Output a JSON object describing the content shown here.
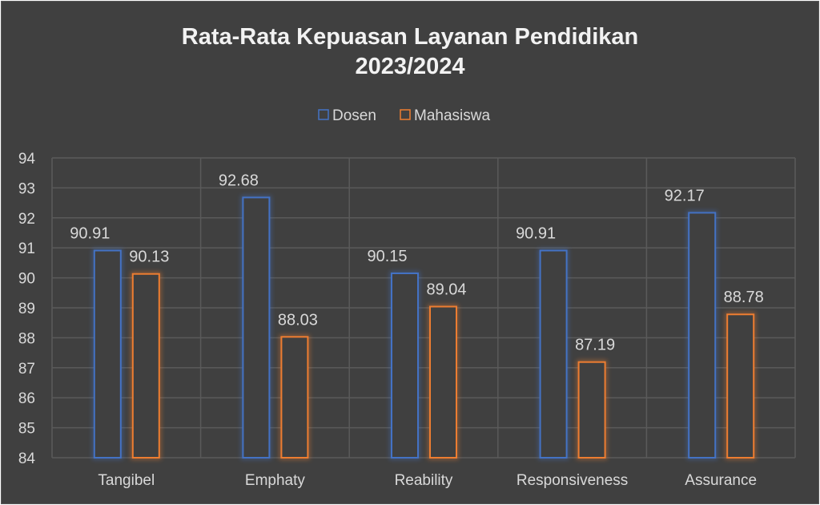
{
  "chart_data": {
    "type": "bar",
    "title_line1": "Rata-Rata Kepuasan Layanan Pendidikan",
    "title_line2": "2023/2024",
    "categories": [
      "Tangibel",
      "Emphaty",
      "Reability",
      "Responsiveness",
      "Assurance"
    ],
    "series": [
      {
        "name": "Dosen",
        "color": "#4472C4",
        "values": [
          90.91,
          92.68,
          90.15,
          90.91,
          92.17
        ]
      },
      {
        "name": "Mahasiswa",
        "color": "#ED7D31",
        "values": [
          90.13,
          88.03,
          89.04,
          87.19,
          88.78
        ]
      }
    ],
    "ylim": [
      84,
      94
    ],
    "yticks": [
      84,
      85,
      86,
      87,
      88,
      89,
      90,
      91,
      92,
      93,
      94
    ],
    "grid": true,
    "legend": "top-center",
    "xlabel": "",
    "ylabel": ""
  }
}
